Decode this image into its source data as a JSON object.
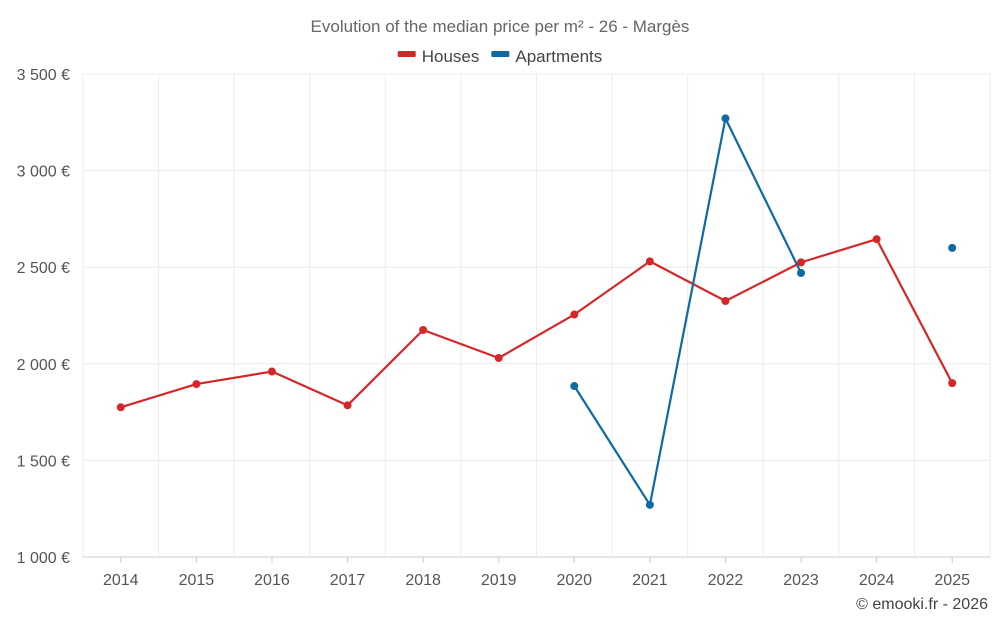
{
  "chart_data": {
    "type": "line",
    "title": "Evolution of the median price per m² - 26 - Margès",
    "categories": [
      "2014",
      "2015",
      "2016",
      "2017",
      "2018",
      "2019",
      "2020",
      "2021",
      "2022",
      "2023",
      "2024",
      "2025"
    ],
    "series": [
      {
        "name": "Houses",
        "color": "#d62728",
        "values": [
          1775,
          1895,
          1960,
          1785,
          2175,
          2030,
          2255,
          2530,
          2325,
          2525,
          2645,
          1900
        ]
      },
      {
        "name": "Apartments",
        "color": "#0e6aa3",
        "values": [
          null,
          null,
          null,
          null,
          null,
          null,
          1885,
          1270,
          3270,
          2470,
          null,
          2600
        ]
      }
    ],
    "ylim": [
      1000,
      3500
    ],
    "yticks": [
      1000,
      1500,
      2000,
      2500,
      3000,
      3500
    ],
    "ytick_labels": [
      "1 000 €",
      "1 500 €",
      "2 000 €",
      "2 500 €",
      "3 000 €",
      "3 500 €"
    ],
    "xlabel": "",
    "ylabel": "",
    "grid": true,
    "legend_position": "top-center"
  },
  "credit": "© emooki.fr - 2026"
}
